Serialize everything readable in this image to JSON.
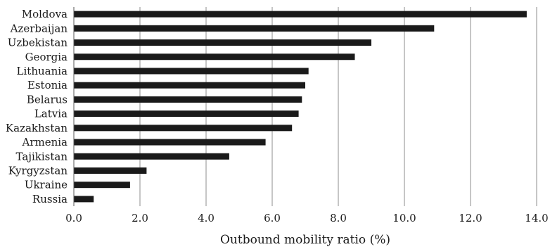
{
  "chart_data": {
    "type": "bar",
    "orientation": "horizontal",
    "categories": [
      "Moldova",
      "Azerbaijan",
      "Uzbekistan",
      "Georgia",
      "Lithuania",
      "Estonia",
      "Belarus",
      "Latvia",
      "Kazakhstan",
      "Armenia",
      "Tajikistan",
      "Kyrgyzstan",
      "Ukraine",
      "Russia"
    ],
    "values": [
      13.7,
      10.9,
      9.0,
      8.5,
      7.1,
      7.0,
      6.9,
      6.8,
      6.6,
      5.8,
      4.7,
      2.2,
      1.7,
      0.6
    ],
    "xlim": [
      0,
      14
    ],
    "xticks": [
      "0.0",
      "2.0",
      "4.0",
      "6.0",
      "8.0",
      "10.0",
      "12.0",
      "14.0"
    ],
    "xlabel": "Outbound mobility ratio (%)",
    "ylabel": "",
    "title": "",
    "grid": "vertical",
    "bar_color": "#1a1a1a",
    "grid_color": "#8c8c8c"
  }
}
